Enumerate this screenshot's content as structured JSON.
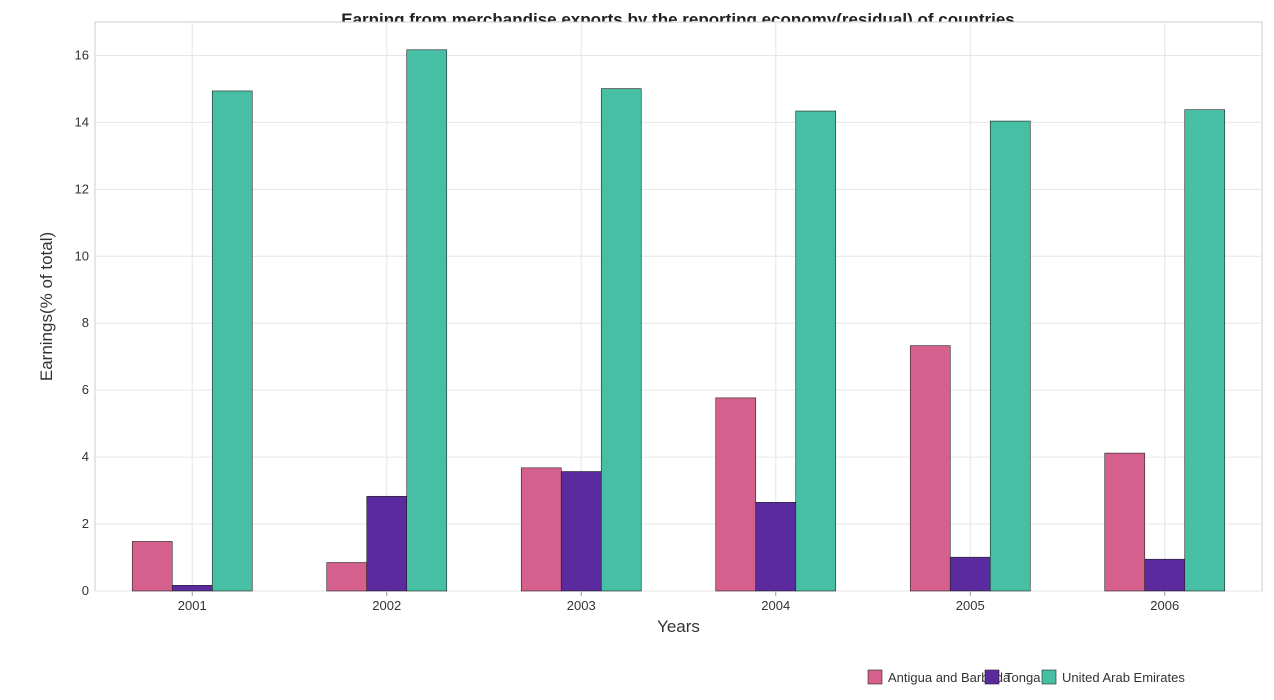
{
  "chart_data": {
    "type": "bar",
    "title": "Earning from merchandise exports by the reporting economy(residual) of countries",
    "xlabel": "Years",
    "ylabel": "Earnings(% of total)",
    "categories": [
      "2001",
      "2002",
      "2003",
      "2004",
      "2005",
      "2006"
    ],
    "ylim": [
      0,
      17
    ],
    "yticks": [
      0,
      2,
      4,
      6,
      8,
      10,
      12,
      14,
      16
    ],
    "grid": true,
    "legend_position": "bottom-right",
    "series": [
      {
        "name": "Antigua and Barbuda",
        "color": "#d6608d",
        "values": [
          1.48,
          0.85,
          3.68,
          5.77,
          7.33,
          4.12
        ]
      },
      {
        "name": "Tonga",
        "color": "#5b2a9e",
        "values": [
          0.17,
          2.83,
          3.57,
          2.65,
          1.01,
          0.95
        ]
      },
      {
        "name": "United Arab Emirates",
        "color": "#47bfa5",
        "values": [
          14.94,
          16.17,
          15.01,
          14.34,
          14.04,
          14.38
        ]
      }
    ]
  }
}
